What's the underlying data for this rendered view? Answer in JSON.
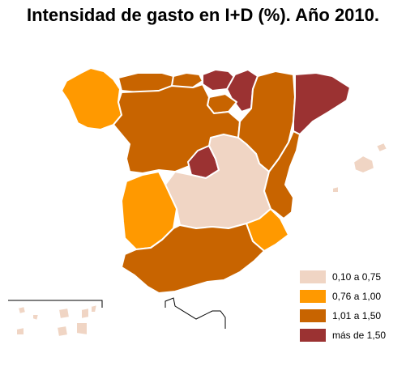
{
  "title": "Intensidad de gasto en I+D (%). Año 2010.",
  "colors": {
    "cat1": "#f0d5c4",
    "cat2": "#ff9900",
    "cat3": "#c86400",
    "cat4": "#9b3232"
  },
  "legend": [
    {
      "label": "0,10 a 0,75",
      "color": "#f0d5c4"
    },
    {
      "label": "0,76 a 1,00",
      "color": "#ff9900"
    },
    {
      "label": "1,01 a 1,50",
      "color": "#c86400"
    },
    {
      "label": "más de 1,50",
      "color": "#9b3232"
    }
  ]
}
